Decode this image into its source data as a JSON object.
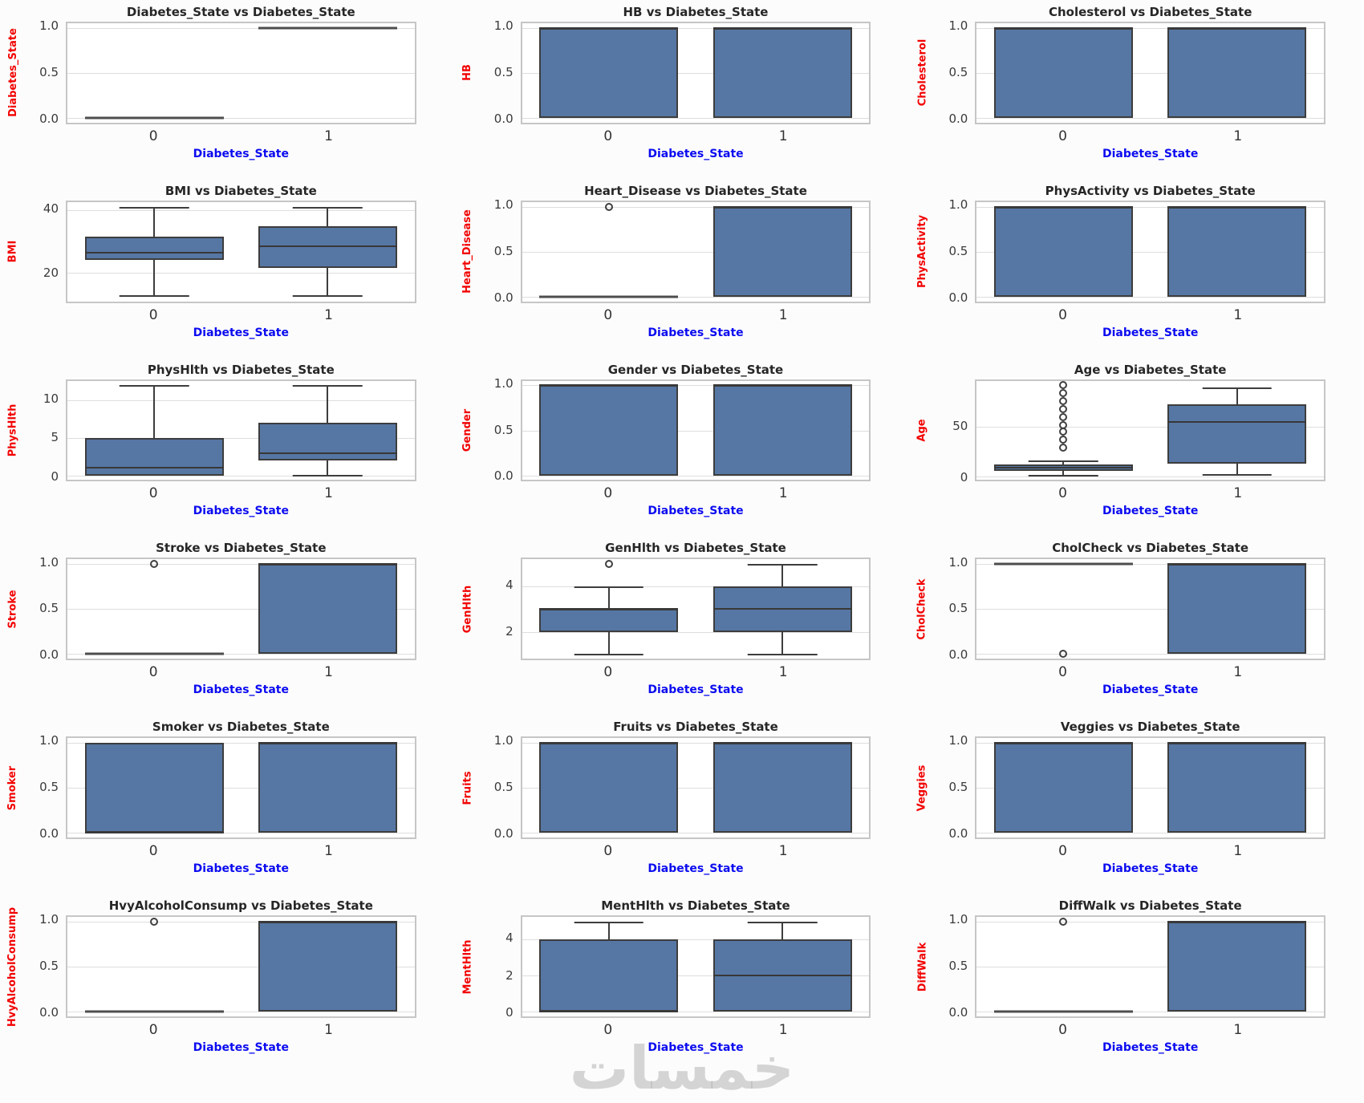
{
  "watermark": "خمسات",
  "figure": {
    "xlabel": "Diabetes_State",
    "categories": [
      "0",
      "1"
    ]
  },
  "colors": {
    "box_fill": "#5677a4",
    "box_edge": "#3d3d3d",
    "median": "#383838",
    "grid": "#dedede",
    "frame": "#c6c6c6",
    "title_text": "#262626",
    "ylabel_text": "#f20000",
    "xlabel_text": "#0b0bf0",
    "tick_text": "#3a3a3a",
    "background": "#ffffff"
  },
  "chart_data": [
    {
      "type": "box",
      "title": "Diabetes_State vs Diabetes_State",
      "ylabel": "Diabetes_State",
      "ylim": [
        -0.052,
        1.052
      ],
      "yticks": [
        {
          "v": 0,
          "label": "0.0"
        },
        {
          "v": 0.5,
          "label": "0.5"
        },
        {
          "v": 1,
          "label": "1.0"
        }
      ],
      "boxes": [
        {
          "lo": 0,
          "q1": 0,
          "median": 0,
          "q3": 0,
          "hi": 0,
          "outliers": []
        },
        {
          "lo": 1,
          "q1": 1,
          "median": 1,
          "q3": 1,
          "hi": 1,
          "outliers": []
        }
      ]
    },
    {
      "type": "box",
      "title": "HB vs Diabetes_State",
      "ylabel": "HB",
      "ylim": [
        -0.052,
        1.052
      ],
      "yticks": [
        {
          "v": 0,
          "label": "0.0"
        },
        {
          "v": 0.5,
          "label": "0.5"
        },
        {
          "v": 1,
          "label": "1.0"
        }
      ],
      "boxes": [
        {
          "lo": 0,
          "q1": 0,
          "median": 1,
          "q3": 1,
          "hi": 1,
          "outliers": []
        },
        {
          "lo": 0,
          "q1": 0,
          "median": 1,
          "q3": 1,
          "hi": 1,
          "outliers": []
        }
      ]
    },
    {
      "type": "box",
      "title": "Cholesterol vs Diabetes_State",
      "ylabel": "Cholesterol",
      "ylim": [
        -0.052,
        1.052
      ],
      "yticks": [
        {
          "v": 0,
          "label": "0.0"
        },
        {
          "v": 0.5,
          "label": "0.5"
        },
        {
          "v": 1,
          "label": "1.0"
        }
      ],
      "boxes": [
        {
          "lo": 0,
          "q1": 0,
          "median": 1,
          "q3": 1,
          "hi": 1,
          "outliers": []
        },
        {
          "lo": 0,
          "q1": 0,
          "median": 1,
          "q3": 1,
          "hi": 1,
          "outliers": []
        }
      ]
    },
    {
      "type": "box",
      "title": "BMI vs Diabetes_State",
      "ylabel": "BMI",
      "ylim": [
        10.8,
        42.7
      ],
      "yticks": [
        {
          "v": 20,
          "label": "20"
        },
        {
          "v": 40,
          "label": "40"
        }
      ],
      "boxes": [
        {
          "lo": 12.5,
          "q1": 24,
          "median": 26.5,
          "q3": 31.5,
          "hi": 41,
          "outliers": []
        },
        {
          "lo": 12.5,
          "q1": 21.5,
          "median": 28.5,
          "q3": 35,
          "hi": 41,
          "outliers": []
        }
      ]
    },
    {
      "type": "box",
      "title": "Heart_Disease vs Diabetes_State",
      "ylabel": "Heart_Disease",
      "ylim": [
        -0.052,
        1.052
      ],
      "yticks": [
        {
          "v": 0,
          "label": "0.0"
        },
        {
          "v": 0.5,
          "label": "0.5"
        },
        {
          "v": 1,
          "label": "1.0"
        }
      ],
      "boxes": [
        {
          "lo": 0,
          "q1": 0,
          "median": 0,
          "q3": 0,
          "hi": 0,
          "outliers": [
            1
          ]
        },
        {
          "lo": 0,
          "q1": 0,
          "median": 1,
          "q3": 1,
          "hi": 1,
          "outliers": []
        }
      ]
    },
    {
      "type": "box",
      "title": "PhysActivity vs Diabetes_State",
      "ylabel": "PhysActivity",
      "ylim": [
        -0.052,
        1.052
      ],
      "yticks": [
        {
          "v": 0,
          "label": "0.0"
        },
        {
          "v": 0.5,
          "label": "0.5"
        },
        {
          "v": 1,
          "label": "1.0"
        }
      ],
      "boxes": [
        {
          "lo": 0,
          "q1": 0,
          "median": 1,
          "q3": 1,
          "hi": 1,
          "outliers": []
        },
        {
          "lo": 0,
          "q1": 0,
          "median": 1,
          "q3": 1,
          "hi": 1,
          "outliers": []
        }
      ]
    },
    {
      "type": "box",
      "title": "PhysHlth vs Diabetes_State",
      "ylabel": "PhysHlth",
      "ylim": [
        -0.6,
        12.6
      ],
      "yticks": [
        {
          "v": 0,
          "label": "0"
        },
        {
          "v": 5,
          "label": "5"
        },
        {
          "v": 10,
          "label": "10"
        }
      ],
      "boxes": [
        {
          "lo": 0,
          "q1": 0,
          "median": 1,
          "q3": 5,
          "hi": 12,
          "outliers": []
        },
        {
          "lo": 0,
          "q1": 2,
          "median": 3,
          "q3": 7,
          "hi": 12,
          "outliers": []
        }
      ]
    },
    {
      "type": "box",
      "title": "Gender vs Diabetes_State",
      "ylabel": "Gender",
      "ylim": [
        -0.052,
        1.052
      ],
      "yticks": [
        {
          "v": 0,
          "label": "0.0"
        },
        {
          "v": 0.5,
          "label": "0.5"
        },
        {
          "v": 1,
          "label": "1.0"
        }
      ],
      "boxes": [
        {
          "lo": 0,
          "q1": 0,
          "median": 1,
          "q3": 1,
          "hi": 1,
          "outliers": []
        },
        {
          "lo": 0,
          "q1": 0,
          "median": 1,
          "q3": 1,
          "hi": 1,
          "outliers": []
        }
      ]
    },
    {
      "type": "box",
      "title": "Age vs Diabetes_State",
      "ylabel": "Age",
      "ylim": [
        -3.5,
        96.5
      ],
      "yticks": [
        {
          "v": 0,
          "label": "0"
        },
        {
          "v": 50,
          "label": "50"
        }
      ],
      "boxes": [
        {
          "lo": 1,
          "q1": 6,
          "median": 9,
          "q3": 12,
          "hi": 16,
          "outliers": [
            29,
            37,
            45,
            52,
            60,
            68,
            76,
            84,
            92
          ]
        },
        {
          "lo": 2,
          "q1": 13,
          "median": 55,
          "q3": 73,
          "hi": 90,
          "outliers": []
        }
      ]
    },
    {
      "type": "box",
      "title": "Stroke vs Diabetes_State",
      "ylabel": "Stroke",
      "ylim": [
        -0.052,
        1.052
      ],
      "yticks": [
        {
          "v": 0,
          "label": "0.0"
        },
        {
          "v": 0.5,
          "label": "0.5"
        },
        {
          "v": 1,
          "label": "1.0"
        }
      ],
      "boxes": [
        {
          "lo": 0,
          "q1": 0,
          "median": 0,
          "q3": 0,
          "hi": 0,
          "outliers": [
            1
          ]
        },
        {
          "lo": 0,
          "q1": 0,
          "median": 1,
          "q3": 1,
          "hi": 1,
          "outliers": []
        }
      ]
    },
    {
      "type": "box",
      "title": "GenHlth vs Diabetes_State",
      "ylabel": "GenHlth",
      "ylim": [
        0.8,
        5.2
      ],
      "yticks": [
        {
          "v": 2,
          "label": "2"
        },
        {
          "v": 4,
          "label": "4"
        }
      ],
      "boxes": [
        {
          "lo": 1,
          "q1": 2,
          "median": 3,
          "q3": 3,
          "hi": 4,
          "outliers": [
            5
          ]
        },
        {
          "lo": 1,
          "q1": 2,
          "median": 3,
          "q3": 4,
          "hi": 5,
          "outliers": []
        }
      ]
    },
    {
      "type": "box",
      "title": "CholCheck vs Diabetes_State",
      "ylabel": "CholCheck",
      "ylim": [
        -0.052,
        1.052
      ],
      "yticks": [
        {
          "v": 0,
          "label": "0.0"
        },
        {
          "v": 0.5,
          "label": "0.5"
        },
        {
          "v": 1,
          "label": "1.0"
        }
      ],
      "boxes": [
        {
          "lo": 1,
          "q1": 1,
          "median": 1,
          "q3": 1,
          "hi": 1,
          "outliers": [
            0
          ]
        },
        {
          "lo": 0,
          "q1": 0,
          "median": 1,
          "q3": 1,
          "hi": 1,
          "outliers": []
        }
      ]
    },
    {
      "type": "box",
      "title": "Smoker vs Diabetes_State",
      "ylabel": "Smoker",
      "ylim": [
        -0.052,
        1.052
      ],
      "yticks": [
        {
          "v": 0,
          "label": "0.0"
        },
        {
          "v": 0.5,
          "label": "0.5"
        },
        {
          "v": 1,
          "label": "1.0"
        }
      ],
      "boxes": [
        {
          "lo": 0,
          "q1": 0,
          "median": 0,
          "q3": 1,
          "hi": 1,
          "outliers": []
        },
        {
          "lo": 0,
          "q1": 0,
          "median": 1,
          "q3": 1,
          "hi": 1,
          "outliers": []
        }
      ]
    },
    {
      "type": "box",
      "title": "Fruits vs Diabetes_State",
      "ylabel": "Fruits",
      "ylim": [
        -0.052,
        1.052
      ],
      "yticks": [
        {
          "v": 0,
          "label": "0.0"
        },
        {
          "v": 0.5,
          "label": "0.5"
        },
        {
          "v": 1,
          "label": "1.0"
        }
      ],
      "boxes": [
        {
          "lo": 0,
          "q1": 0,
          "median": 1,
          "q3": 1,
          "hi": 1,
          "outliers": []
        },
        {
          "lo": 0,
          "q1": 0,
          "median": 1,
          "q3": 1,
          "hi": 1,
          "outliers": []
        }
      ]
    },
    {
      "type": "box",
      "title": "Veggies vs Diabetes_State",
      "ylabel": "Veggies",
      "ylim": [
        -0.052,
        1.052
      ],
      "yticks": [
        {
          "v": 0,
          "label": "0.0"
        },
        {
          "v": 0.5,
          "label": "0.5"
        },
        {
          "v": 1,
          "label": "1.0"
        }
      ],
      "boxes": [
        {
          "lo": 0,
          "q1": 0,
          "median": 1,
          "q3": 1,
          "hi": 1,
          "outliers": []
        },
        {
          "lo": 0,
          "q1": 0,
          "median": 1,
          "q3": 1,
          "hi": 1,
          "outliers": []
        }
      ]
    },
    {
      "type": "box",
      "title": "HvyAlcoholConsump vs Diabetes_State",
      "ylabel": "HvyAlcoholConsump",
      "ylim": [
        -0.052,
        1.052
      ],
      "yticks": [
        {
          "v": 0,
          "label": "0.0"
        },
        {
          "v": 0.5,
          "label": "0.5"
        },
        {
          "v": 1,
          "label": "1.0"
        }
      ],
      "boxes": [
        {
          "lo": 0,
          "q1": 0,
          "median": 0,
          "q3": 0,
          "hi": 0,
          "outliers": [
            1
          ]
        },
        {
          "lo": 0,
          "q1": 0,
          "median": 1,
          "q3": 1,
          "hi": 1,
          "outliers": []
        }
      ]
    },
    {
      "type": "box",
      "title": "MentHlth vs Diabetes_State",
      "ylabel": "MentHlth",
      "ylim": [
        -0.25,
        5.25
      ],
      "yticks": [
        {
          "v": 0,
          "label": "0"
        },
        {
          "v": 2,
          "label": "2"
        },
        {
          "v": 4,
          "label": "4"
        }
      ],
      "boxes": [
        {
          "lo": 0,
          "q1": 0,
          "median": 0,
          "q3": 4,
          "hi": 5,
          "outliers": []
        },
        {
          "lo": 0,
          "q1": 0,
          "median": 2,
          "q3": 4,
          "hi": 5,
          "outliers": []
        }
      ]
    },
    {
      "type": "box",
      "title": "DiffWalk vs Diabetes_State",
      "ylabel": "DiffWalk",
      "ylim": [
        -0.052,
        1.052
      ],
      "yticks": [
        {
          "v": 0,
          "label": "0.0"
        },
        {
          "v": 0.5,
          "label": "0.5"
        },
        {
          "v": 1,
          "label": "1.0"
        }
      ],
      "boxes": [
        {
          "lo": 0,
          "q1": 0,
          "median": 0,
          "q3": 0,
          "hi": 0,
          "outliers": [
            1
          ]
        },
        {
          "lo": 0,
          "q1": 0,
          "median": 1,
          "q3": 1,
          "hi": 1,
          "outliers": []
        }
      ]
    }
  ]
}
